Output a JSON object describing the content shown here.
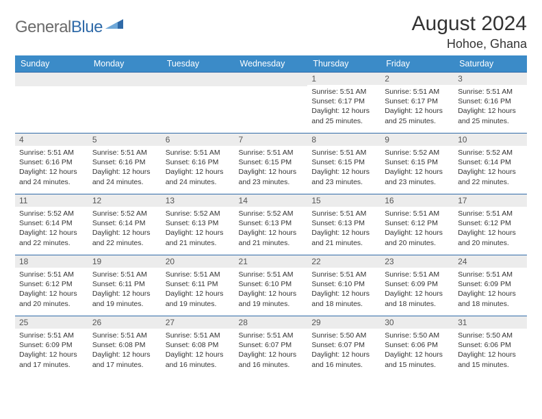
{
  "brand": {
    "word1": "General",
    "word2": "Blue",
    "word1_color": "#6b6b6b",
    "word2_color": "#2f6aa8",
    "mark_fill": "#2f6aa8"
  },
  "title": "August 2024",
  "location": "Hohoe, Ghana",
  "colors": {
    "header_bg": "#3b8bc8",
    "header_text": "#ffffff",
    "row_divider": "#2f6aa8",
    "daynum_bg": "#ececec",
    "body_text": "#333333",
    "page_bg": "#ffffff"
  },
  "typography": {
    "title_fontsize": 30,
    "location_fontsize": 18,
    "weekday_fontsize": 12.5,
    "daynum_fontsize": 12,
    "cell_fontsize": 10.5
  },
  "weekdays": [
    "Sunday",
    "Monday",
    "Tuesday",
    "Wednesday",
    "Thursday",
    "Friday",
    "Saturday"
  ],
  "weeks": [
    [
      {
        "n": "",
        "lines": []
      },
      {
        "n": "",
        "lines": []
      },
      {
        "n": "",
        "lines": []
      },
      {
        "n": "",
        "lines": []
      },
      {
        "n": "1",
        "lines": [
          "Sunrise: 5:51 AM",
          "Sunset: 6:17 PM",
          "Daylight: 12 hours",
          "and 25 minutes."
        ]
      },
      {
        "n": "2",
        "lines": [
          "Sunrise: 5:51 AM",
          "Sunset: 6:17 PM",
          "Daylight: 12 hours",
          "and 25 minutes."
        ]
      },
      {
        "n": "3",
        "lines": [
          "Sunrise: 5:51 AM",
          "Sunset: 6:16 PM",
          "Daylight: 12 hours",
          "and 25 minutes."
        ]
      }
    ],
    [
      {
        "n": "4",
        "lines": [
          "Sunrise: 5:51 AM",
          "Sunset: 6:16 PM",
          "Daylight: 12 hours",
          "and 24 minutes."
        ]
      },
      {
        "n": "5",
        "lines": [
          "Sunrise: 5:51 AM",
          "Sunset: 6:16 PM",
          "Daylight: 12 hours",
          "and 24 minutes."
        ]
      },
      {
        "n": "6",
        "lines": [
          "Sunrise: 5:51 AM",
          "Sunset: 6:16 PM",
          "Daylight: 12 hours",
          "and 24 minutes."
        ]
      },
      {
        "n": "7",
        "lines": [
          "Sunrise: 5:51 AM",
          "Sunset: 6:15 PM",
          "Daylight: 12 hours",
          "and 23 minutes."
        ]
      },
      {
        "n": "8",
        "lines": [
          "Sunrise: 5:51 AM",
          "Sunset: 6:15 PM",
          "Daylight: 12 hours",
          "and 23 minutes."
        ]
      },
      {
        "n": "9",
        "lines": [
          "Sunrise: 5:52 AM",
          "Sunset: 6:15 PM",
          "Daylight: 12 hours",
          "and 23 minutes."
        ]
      },
      {
        "n": "10",
        "lines": [
          "Sunrise: 5:52 AM",
          "Sunset: 6:14 PM",
          "Daylight: 12 hours",
          "and 22 minutes."
        ]
      }
    ],
    [
      {
        "n": "11",
        "lines": [
          "Sunrise: 5:52 AM",
          "Sunset: 6:14 PM",
          "Daylight: 12 hours",
          "and 22 minutes."
        ]
      },
      {
        "n": "12",
        "lines": [
          "Sunrise: 5:52 AM",
          "Sunset: 6:14 PM",
          "Daylight: 12 hours",
          "and 22 minutes."
        ]
      },
      {
        "n": "13",
        "lines": [
          "Sunrise: 5:52 AM",
          "Sunset: 6:13 PM",
          "Daylight: 12 hours",
          "and 21 minutes."
        ]
      },
      {
        "n": "14",
        "lines": [
          "Sunrise: 5:52 AM",
          "Sunset: 6:13 PM",
          "Daylight: 12 hours",
          "and 21 minutes."
        ]
      },
      {
        "n": "15",
        "lines": [
          "Sunrise: 5:51 AM",
          "Sunset: 6:13 PM",
          "Daylight: 12 hours",
          "and 21 minutes."
        ]
      },
      {
        "n": "16",
        "lines": [
          "Sunrise: 5:51 AM",
          "Sunset: 6:12 PM",
          "Daylight: 12 hours",
          "and 20 minutes."
        ]
      },
      {
        "n": "17",
        "lines": [
          "Sunrise: 5:51 AM",
          "Sunset: 6:12 PM",
          "Daylight: 12 hours",
          "and 20 minutes."
        ]
      }
    ],
    [
      {
        "n": "18",
        "lines": [
          "Sunrise: 5:51 AM",
          "Sunset: 6:12 PM",
          "Daylight: 12 hours",
          "and 20 minutes."
        ]
      },
      {
        "n": "19",
        "lines": [
          "Sunrise: 5:51 AM",
          "Sunset: 6:11 PM",
          "Daylight: 12 hours",
          "and 19 minutes."
        ]
      },
      {
        "n": "20",
        "lines": [
          "Sunrise: 5:51 AM",
          "Sunset: 6:11 PM",
          "Daylight: 12 hours",
          "and 19 minutes."
        ]
      },
      {
        "n": "21",
        "lines": [
          "Sunrise: 5:51 AM",
          "Sunset: 6:10 PM",
          "Daylight: 12 hours",
          "and 19 minutes."
        ]
      },
      {
        "n": "22",
        "lines": [
          "Sunrise: 5:51 AM",
          "Sunset: 6:10 PM",
          "Daylight: 12 hours",
          "and 18 minutes."
        ]
      },
      {
        "n": "23",
        "lines": [
          "Sunrise: 5:51 AM",
          "Sunset: 6:09 PM",
          "Daylight: 12 hours",
          "and 18 minutes."
        ]
      },
      {
        "n": "24",
        "lines": [
          "Sunrise: 5:51 AM",
          "Sunset: 6:09 PM",
          "Daylight: 12 hours",
          "and 18 minutes."
        ]
      }
    ],
    [
      {
        "n": "25",
        "lines": [
          "Sunrise: 5:51 AM",
          "Sunset: 6:09 PM",
          "Daylight: 12 hours",
          "and 17 minutes."
        ]
      },
      {
        "n": "26",
        "lines": [
          "Sunrise: 5:51 AM",
          "Sunset: 6:08 PM",
          "Daylight: 12 hours",
          "and 17 minutes."
        ]
      },
      {
        "n": "27",
        "lines": [
          "Sunrise: 5:51 AM",
          "Sunset: 6:08 PM",
          "Daylight: 12 hours",
          "and 16 minutes."
        ]
      },
      {
        "n": "28",
        "lines": [
          "Sunrise: 5:51 AM",
          "Sunset: 6:07 PM",
          "Daylight: 12 hours",
          "and 16 minutes."
        ]
      },
      {
        "n": "29",
        "lines": [
          "Sunrise: 5:50 AM",
          "Sunset: 6:07 PM",
          "Daylight: 12 hours",
          "and 16 minutes."
        ]
      },
      {
        "n": "30",
        "lines": [
          "Sunrise: 5:50 AM",
          "Sunset: 6:06 PM",
          "Daylight: 12 hours",
          "and 15 minutes."
        ]
      },
      {
        "n": "31",
        "lines": [
          "Sunrise: 5:50 AM",
          "Sunset: 6:06 PM",
          "Daylight: 12 hours",
          "and 15 minutes."
        ]
      }
    ]
  ]
}
